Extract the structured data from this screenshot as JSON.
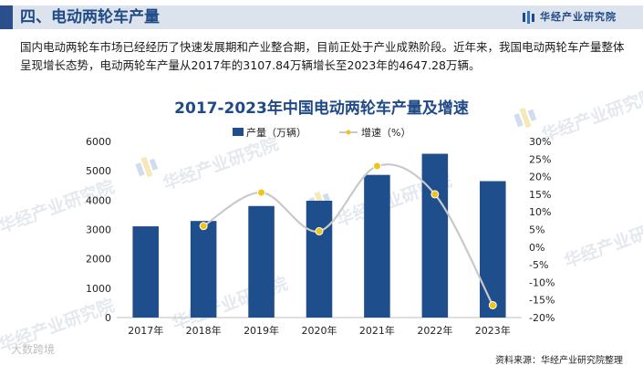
{
  "header": {
    "title": "四、电动两轮车产量",
    "brand": "华经产业研究院"
  },
  "intro": {
    "text": "国内电动两轮车市场已经经历了快速发展期和产业整合期，目前正处于产业成熟阶段。近年来，我国电动两轮车产量整体呈现增长态势，电动两轮车产量从2017年的3107.84万辆增长至2023年的4647.28万辆。"
  },
  "watermarks": [
    "华经产业研究院",
    "华经产业研究院",
    "华经产业研究院",
    "华经产业研究院",
    "华经产业研究院",
    "华经产业研究院",
    "华经产业研究院"
  ],
  "colors": {
    "bar": "#1f4e8c",
    "line": "#c9c9c9",
    "marker": "#f0c419",
    "title": "#1f4a87"
  },
  "chart_data": {
    "type": "bar",
    "title": "2017-2023年中国电动两轮车产量及增速",
    "categories": [
      "2017年",
      "2018年",
      "2019年",
      "2020年",
      "2021年",
      "2022年",
      "2023年"
    ],
    "series": [
      {
        "name": "产量（万辆）",
        "type": "bar",
        "axis": "left",
        "values": [
          3107.84,
          3290,
          3800,
          3980,
          4860,
          5580,
          4647.28
        ]
      },
      {
        "name": "增速（%）",
        "type": "line",
        "axis": "right",
        "values": [
          null,
          6,
          15.5,
          4.5,
          23,
          15,
          -16.5
        ]
      }
    ],
    "y_left": {
      "min": 0,
      "max": 6000,
      "ticks": [
        0,
        1000,
        2000,
        3000,
        4000,
        5000,
        6000
      ]
    },
    "y_right": {
      "min": -20,
      "max": 30,
      "ticks": [
        "-20%",
        "-15%",
        "-10%",
        "-5%",
        "0%",
        "5%",
        "10%",
        "15%",
        "20%",
        "25%",
        "30%"
      ]
    },
    "legend_position": "top-center",
    "grid": false
  },
  "footer": {
    "left": "大数跨境",
    "source": "资料来源：华经产业研究院整理"
  }
}
